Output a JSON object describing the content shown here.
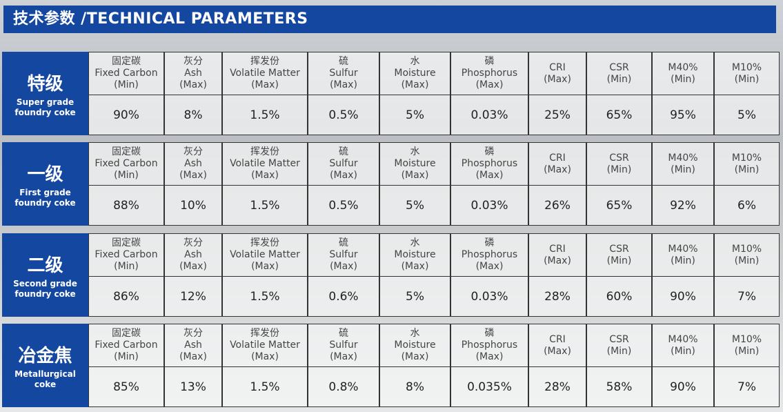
{
  "header": {
    "title": "技术参数 /TECHNICAL PARAMETERS"
  },
  "grades": [
    {
      "name_cn": "特级",
      "name_en": [
        "Super grade",
        "foundry coke"
      ],
      "columns": [
        [
          "固定碳",
          "Fixed Carbon",
          "(Min)"
        ],
        [
          "灰分",
          "Ash",
          "(Max)"
        ],
        [
          "挥发份",
          "Volatile Matter",
          "(Max)"
        ],
        [
          "硫",
          "Sulfur",
          "(Max)"
        ],
        [
          "水",
          "Moisture",
          "(Max)"
        ],
        [
          "磷",
          "Phosphorus",
          "(Max)"
        ],
        [
          "CRI",
          "(Max)"
        ],
        [
          "CSR",
          "(Min)"
        ],
        [
          "M40%",
          "(Min)"
        ],
        [
          "M10%",
          "(Min)"
        ]
      ],
      "values": [
        "90%",
        "8%",
        "1.5%",
        "0.5%",
        "5%",
        "0.03%",
        "25%",
        "65%",
        "95%",
        "5%"
      ]
    },
    {
      "name_cn": "一级",
      "name_en": [
        "First grade",
        "foundry coke"
      ],
      "columns": [
        [
          "固定碳",
          "Fixed Carbon",
          "(Min)"
        ],
        [
          "灰分",
          "Ash",
          "(Max)"
        ],
        [
          "挥发份",
          "Volatile Matter",
          "(Max)"
        ],
        [
          "硫",
          "Sulfur",
          "(Max)"
        ],
        [
          "水",
          "Moisture",
          "(Max)"
        ],
        [
          "磷",
          "Phosphorus",
          "(Max)"
        ],
        [
          "CRI",
          "(Max)"
        ],
        [
          "CSR",
          "(Min)"
        ],
        [
          "M40%",
          "(Min)"
        ],
        [
          "M10%",
          "(Min)"
        ]
      ],
      "values": [
        "88%",
        "10%",
        "1.5%",
        "0.5%",
        "5%",
        "0.03%",
        "26%",
        "65%",
        "92%",
        "6%"
      ]
    },
    {
      "name_cn": "二级",
      "name_en": [
        "Second grade",
        "foundry coke"
      ],
      "columns": [
        [
          "固定碳",
          "Fixed Carbon",
          "(Min)"
        ],
        [
          "灰分",
          "Ash",
          "(Max)"
        ],
        [
          "挥发份",
          "Volatile Matter",
          "(Max)"
        ],
        [
          "硫",
          "Sulfur",
          "(Max)"
        ],
        [
          "水",
          "Moisture",
          "(Max)"
        ],
        [
          "磷",
          "Phosphorus",
          "(Max)"
        ],
        [
          "CRI",
          "(Max)"
        ],
        [
          "CSR",
          "(Min)"
        ],
        [
          "M40%",
          "(Min)"
        ],
        [
          "M10%",
          "(Min)"
        ]
      ],
      "values": [
        "86%",
        "12%",
        "1.5%",
        "0.6%",
        "5%",
        "0.03%",
        "28%",
        "60%",
        "90%",
        "7%"
      ]
    },
    {
      "name_cn": "冶金焦",
      "name_en": [
        "Metallurgical",
        "coke"
      ],
      "columns": [
        [
          "固定碳",
          "Fixed Carbon",
          "(Min)"
        ],
        [
          "灰分",
          "Ash",
          "(Max)"
        ],
        [
          "挥发份",
          "Volatile Matter",
          "(Max)"
        ],
        [
          "硫",
          "Sulfur",
          "(Max)"
        ],
        [
          "水",
          "Moisture",
          "(Max)"
        ],
        [
          "磷",
          "Phosphorus",
          "(Max)"
        ],
        [
          "CRI",
          "(Max)"
        ],
        [
          "CSR",
          "(Min)"
        ],
        [
          "M40%",
          "(Min)"
        ],
        [
          "M10%",
          "(Min)"
        ]
      ],
      "values": [
        "85%",
        "13%",
        "1.5%",
        "0.8%",
        "8%",
        "0.035%",
        "28%",
        "58%",
        "90%",
        "7%"
      ]
    }
  ]
}
